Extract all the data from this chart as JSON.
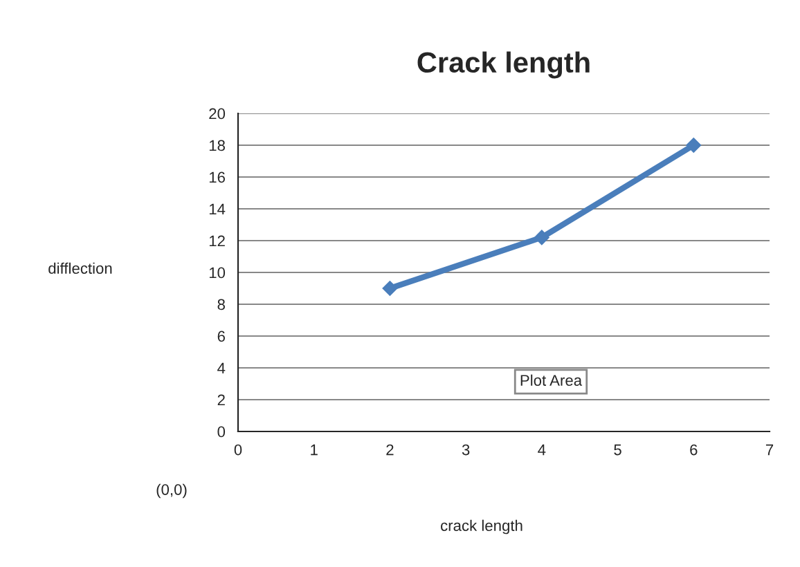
{
  "chart_data": {
    "type": "line",
    "title": "Crack length",
    "x": [
      2,
      4,
      6
    ],
    "series": [
      {
        "color": "#4a7ebb",
        "values": [
          9,
          12.2,
          18
        ]
      }
    ],
    "xlim": [
      0,
      7
    ],
    "xticks": [
      0,
      1,
      2,
      3,
      4,
      5,
      6,
      7
    ],
    "ylim": [
      0,
      20
    ],
    "yticks": [
      0,
      2,
      4,
      6,
      8,
      10,
      12,
      14,
      16,
      18,
      20
    ],
    "grid": "y",
    "marker": "diamond",
    "line_style": "solid",
    "legend": false,
    "annotations": [
      "difflection",
      "(0,0)",
      "crack length",
      "Plot Area"
    ]
  }
}
